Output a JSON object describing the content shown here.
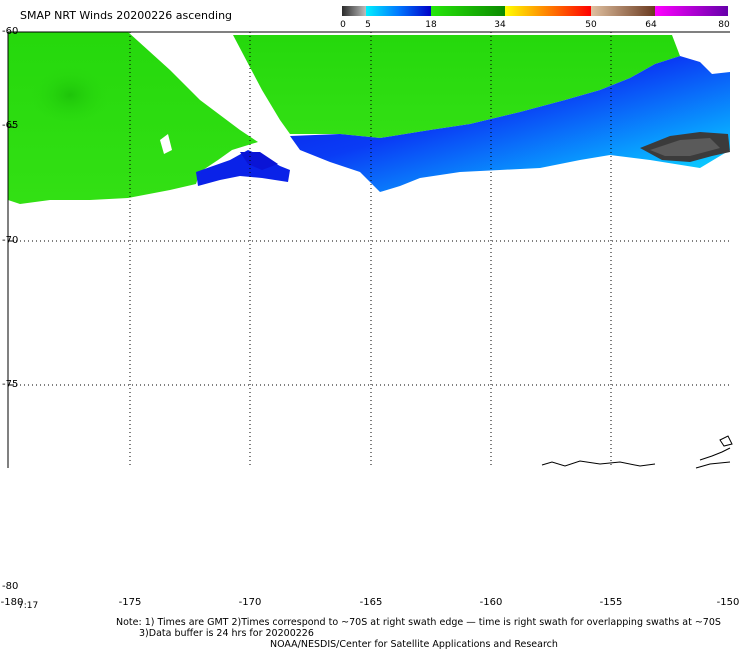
{
  "title": "SMAP NRT Winds 20200226 ascending",
  "colorbar": {
    "segments": [
      {
        "from": 0,
        "to": 5,
        "colors": [
          "#2b2b2b",
          "#bdbdbd"
        ]
      },
      {
        "from": 5,
        "to": 18,
        "colors": [
          "#00f0ff",
          "#0000c8"
        ]
      },
      {
        "from": 18,
        "to": 34,
        "colors": [
          "#26e60a",
          "#0c8a00"
        ]
      },
      {
        "from": 34,
        "to": 50,
        "colors": [
          "#ffff00",
          "#ff8000",
          "#ff0000"
        ]
      },
      {
        "from": 50,
        "to": 64,
        "colors": [
          "#e0c0a0",
          "#6a3a20"
        ]
      },
      {
        "from": 64,
        "to": 80,
        "colors": [
          "#ff00ff",
          "#6600aa"
        ]
      }
    ],
    "ticks": [
      "0",
      "5",
      "18",
      "34",
      "50",
      "64",
      "80"
    ]
  },
  "axes": {
    "y_labels": [
      "-60",
      "-65",
      "-70",
      "-75",
      "-80"
    ],
    "x_labels": [
      "-180",
      "-175",
      "-170",
      "-165",
      "-160",
      "-155",
      "-150"
    ],
    "time_label": "7:17"
  },
  "notes": {
    "line1": "Note: 1) Times are GMT 2)Times correspond to ~70S at right swath edge — time is right swath for overlapping swaths at ~70S",
    "line2": "3)Data buffer is 24 hrs for 20200226",
    "line3": "NOAA/NESDIS/Center for Satellite Applications and Research"
  },
  "colors": {
    "green": "#2bdc0f",
    "blue": "#0c1ff0",
    "cyan": "#0acfff",
    "dark": "#3a3a3a"
  }
}
